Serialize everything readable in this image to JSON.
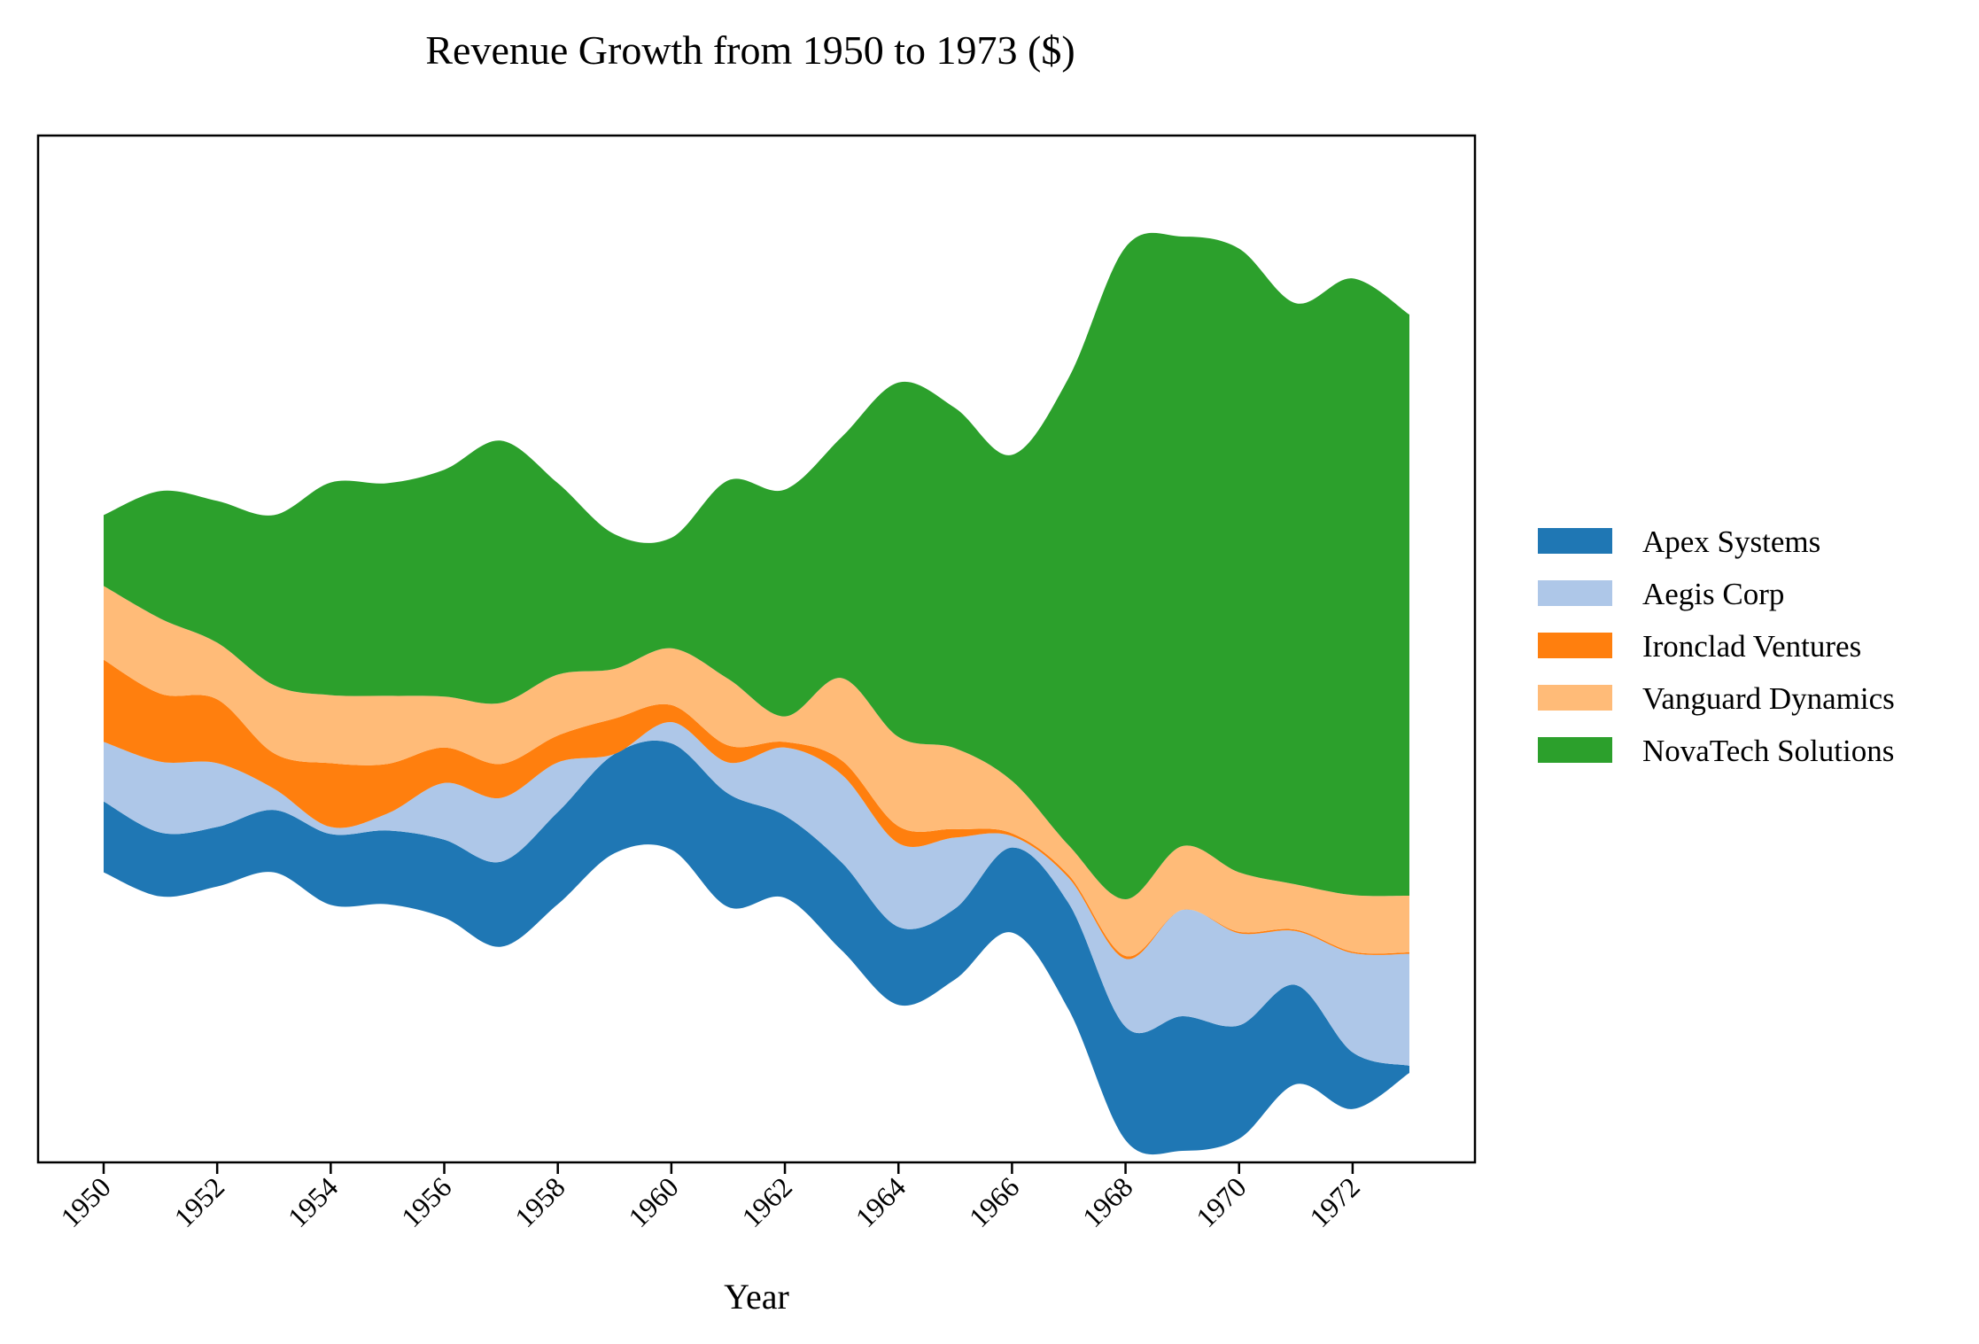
{
  "chart_data": {
    "type": "streamgraph",
    "title": "Revenue Growth from 1950 to 1973 ($)",
    "xlabel": "Year",
    "ylabel": "",
    "x": [
      1950,
      1951,
      1952,
      1953,
      1954,
      1955,
      1956,
      1957,
      1958,
      1959,
      1960,
      1961,
      1962,
      1963,
      1964,
      1965,
      1966,
      1967,
      1968,
      1969,
      1970,
      1971,
      1972,
      1973
    ],
    "x_tick_labels": [
      "1950",
      "1952",
      "1954",
      "1956",
      "1958",
      "1960",
      "1962",
      "1964",
      "1966",
      "1968",
      "1970",
      "1972"
    ],
    "series": [
      {
        "name": "Apex Systems",
        "color": "#1f77b4",
        "values": [
          50,
          45,
          42,
          44,
          50,
          52,
          55,
          60,
          65,
          70,
          75,
          80,
          58,
          62,
          55,
          50,
          60,
          75,
          80,
          95,
          80,
          70,
          40,
          5
        ]
      },
      {
        "name": "Aegis Corp",
        "color": "#aec7e8",
        "values": [
          42,
          50,
          45,
          15,
          5,
          12,
          40,
          45,
          35,
          0,
          15,
          22,
          48,
          62,
          59,
          50,
          8,
          18,
          48,
          75,
          65,
          38,
          70,
          79
        ]
      },
      {
        "name": "Ironclad Ventures",
        "color": "#ff7f0e",
        "values": [
          58,
          48,
          45,
          25,
          45,
          35,
          25,
          24,
          19,
          25,
          12,
          12,
          4,
          10,
          12,
          6,
          2,
          2,
          2,
          0,
          1,
          1,
          1,
          1
        ]
      },
      {
        "name": "Vanguard Dynamics",
        "color": "#ffbb78",
        "values": [
          52,
          53,
          40,
          48,
          48,
          48,
          36,
          43,
          43,
          35,
          40,
          47,
          18,
          58,
          63,
          57,
          37,
          21,
          40,
          45,
          42,
          32,
          40,
          40
        ]
      },
      {
        "name": "NovaTech Solutions",
        "color": "#2ca02c",
        "values": [
          50,
          90,
          100,
          120,
          150,
          150,
          160,
          185,
          135,
          95,
          78,
          140,
          160,
          170,
          250,
          240,
          230,
          330,
          460,
          430,
          440,
          410,
          435,
          410
        ]
      }
    ],
    "legend": "right",
    "grid": false
  }
}
